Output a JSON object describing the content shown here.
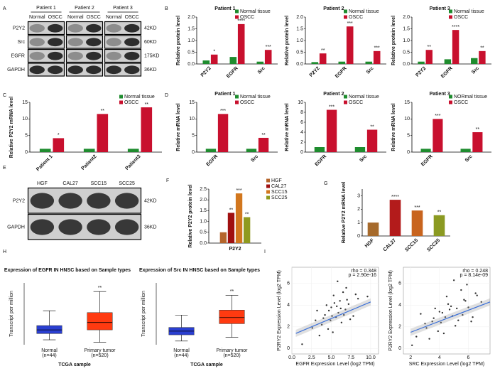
{
  "chart_data": [
    {
      "type": "blot",
      "panel": "A",
      "groups": [
        "Patient 1",
        "Patient 2",
        "Patient 3"
      ],
      "lanes": [
        "Normal",
        "OSCC"
      ],
      "rows": [
        "P2Y2",
        "Src",
        "EGFR",
        "GAPDH"
      ],
      "sizes": [
        "42KD",
        "60KD",
        "175KD",
        "36KD"
      ]
    },
    {
      "type": "bar",
      "panel": "B",
      "title": "Patient 1",
      "ylabel": "Relative protein level",
      "categories": [
        "P2Y2",
        "EGFR",
        "Src"
      ],
      "series": [
        {
          "name": "Normal tissue",
          "color": "#1e8c2e",
          "values": [
            0.15,
            0.3,
            0.1
          ]
        },
        {
          "name": "OSCC",
          "color": "#c8102e",
          "values": [
            0.4,
            1.7,
            0.6
          ],
          "significance": [
            "*",
            "****",
            "***"
          ]
        }
      ],
      "ylim": [
        0,
        2
      ],
      "yticks": [
        {
          "value": 0,
          "label": "0.0"
        },
        {
          "value": 0.5,
          "label": "0.5"
        },
        {
          "value": 1,
          "label": "1.0"
        },
        {
          "value": 1.5,
          "label": "1.5"
        },
        {
          "value": 2,
          "label": "2.0"
        }
      ]
    },
    {
      "type": "bar",
      "title": "Patient 2",
      "ylabel": "Relative protein level",
      "categories": [
        "P2Y2",
        "EGFR",
        "Src"
      ],
      "series": [
        {
          "name": "Normal tissue",
          "color": "#1e8c2e",
          "values": [
            0.08,
            0.1,
            0.1
          ]
        },
        {
          "name": "OSCC",
          "color": "#c8102e",
          "values": [
            0.45,
            1.6,
            0.55
          ],
          "significance": [
            "**",
            "***",
            "***"
          ]
        }
      ],
      "ylim": [
        0,
        2
      ],
      "yticks": [
        {
          "value": 0,
          "label": "0.0"
        },
        {
          "value": 0.5,
          "label": "0.5"
        },
        {
          "value": 1,
          "label": "1.0"
        },
        {
          "value": 1.5,
          "label": "1.5"
        },
        {
          "value": 2,
          "label": "2.0"
        }
      ]
    },
    {
      "type": "bar",
      "title": "Patient 3",
      "ylabel": "Relative protein level",
      "categories": [
        "P2Y2",
        "EGFR",
        "Src"
      ],
      "series": [
        {
          "name": "Normal tissue",
          "color": "#1e8c2e",
          "values": [
            0.1,
            0.2,
            0.25
          ]
        },
        {
          "name": "OSCC",
          "color": "#c8102e",
          "values": [
            0.6,
            1.45,
            0.55
          ],
          "significance": [
            "**",
            "****",
            "**"
          ]
        }
      ],
      "ylim": [
        0,
        2
      ],
      "yticks": [
        {
          "value": 0,
          "label": "0.0"
        },
        {
          "value": 0.5,
          "label": "0.5"
        },
        {
          "value": 1,
          "label": "1.0"
        },
        {
          "value": 1.5,
          "label": "1.5"
        },
        {
          "value": 2,
          "label": "2.0"
        }
      ]
    },
    {
      "type": "bar",
      "panel": "C",
      "ylabel": "Relative P2Y2 mRNA level",
      "categories": [
        "Patient 1",
        "Patient2",
        "Patient3"
      ],
      "series": [
        {
          "name": "Normal tissue",
          "color": "#1e8c2e",
          "values": [
            1,
            1,
            1
          ]
        },
        {
          "name": "OSCC",
          "color": "#c8102e",
          "values": [
            4.2,
            11.5,
            13.5
          ],
          "significance": [
            "*",
            "**",
            "**"
          ]
        }
      ],
      "ylim": [
        0,
        15
      ],
      "yticks": [
        0,
        5,
        10,
        15
      ]
    },
    {
      "type": "bar",
      "panel": "D",
      "title": "Patient 1",
      "ylabel": "Relative mRNA level",
      "categories": [
        "EGFR",
        "Src"
      ],
      "series": [
        {
          "name": "Normal tissue",
          "color": "#1e8c2e",
          "values": [
            1,
            1
          ]
        },
        {
          "name": "OSCC",
          "color": "#c8102e",
          "values": [
            11.5,
            4.3
          ],
          "significance": [
            "***",
            "**"
          ]
        }
      ],
      "ylim": [
        0,
        15
      ],
      "yticks": [
        0,
        5,
        10,
        15
      ]
    },
    {
      "type": "bar",
      "title": "Patient 2",
      "ylabel": "Relative mRNA level",
      "categories": [
        "EGFR",
        "Src"
      ],
      "series": [
        {
          "name": "Normal tissue",
          "color": "#1e8c2e",
          "values": [
            1,
            1
          ]
        },
        {
          "name": "OSCC",
          "color": "#c8102e",
          "values": [
            8.5,
            4.5
          ],
          "significance": [
            "***",
            "**"
          ]
        }
      ],
      "ylim": [
        0,
        10
      ],
      "yticks": [
        0,
        2,
        4,
        6,
        8,
        10
      ]
    },
    {
      "type": "bar",
      "title": "Patient 3",
      "ylabel": "Relative mRNA level",
      "categories": [
        "EGFR",
        "Src"
      ],
      "series": [
        {
          "name": "NORmal tissue",
          "color": "#1e8c2e",
          "values": [
            1,
            1
          ]
        },
        {
          "name": "OSCC",
          "color": "#c8102e",
          "values": [
            10,
            6
          ],
          "significance": [
            "***",
            "**"
          ]
        }
      ],
      "ylim": [
        0,
        15
      ],
      "yticks": [
        0,
        5,
        10,
        15
      ]
    },
    {
      "type": "blot",
      "panel": "E",
      "lanes": [
        "HGF",
        "CAL27",
        "SCC15",
        "SCC25"
      ],
      "rows": [
        "P2Y2",
        "GAPDH"
      ],
      "sizes": [
        "42KD",
        "36KD"
      ]
    },
    {
      "type": "bar",
      "panel": "F",
      "ylabel": "Relative P2Y2 protein level",
      "categories": [
        "P2Y2"
      ],
      "series": [
        {
          "name": "HGF",
          "color": "#b5652b",
          "values": [
            0.5
          ]
        },
        {
          "name": "CAL27",
          "color": "#a01010",
          "values": [
            1.4
          ],
          "significance": [
            "**"
          ]
        },
        {
          "name": "SCC15",
          "color": "#d2771e",
          "values": [
            2.3
          ],
          "significance": [
            "***"
          ]
        },
        {
          "name": "SCC25",
          "color": "#8f9a1e",
          "values": [
            1.2
          ],
          "significance": [
            "**"
          ]
        }
      ],
      "ylim": [
        0,
        2.5
      ],
      "yticks": [
        {
          "value": 0,
          "label": "0.0"
        },
        {
          "value": 0.5,
          "label": "0.5"
        },
        {
          "value": 1,
          "label": "1.0"
        },
        {
          "value": 1.5,
          "label": "1.5"
        },
        {
          "value": 2,
          "label": "2.0"
        },
        {
          "value": 2.5,
          "label": "2.5"
        }
      ]
    },
    {
      "type": "bar",
      "panel": "G",
      "ylabel": "Relative P2Y2 mRNA level",
      "categories": [
        "HGF",
        "CAL27",
        "SCC15",
        "SCC25"
      ],
      "values": [
        1,
        2.7,
        1.9,
        1.55
      ],
      "colors": [
        "#a66a2c",
        "#b31b1b",
        "#c8641e",
        "#8b9a22"
      ],
      "significance": [
        null,
        "****",
        "***",
        "**"
      ],
      "ylim": [
        0,
        3.5
      ],
      "yticks": [
        0,
        1,
        2,
        3
      ]
    },
    {
      "type": "box",
      "panel": "H",
      "title": "Expression of EGFR IN HNSC based on Sample types",
      "ylabel": "Transcript per million",
      "xlabel": "TCGA sample",
      "categories": [
        "Normal",
        "Primary tumor"
      ],
      "sublabels": [
        "(n=44)",
        "(n=520)"
      ],
      "colors": [
        "#2a3fd0",
        "#ff3a10"
      ],
      "boxes": [
        {
          "whislo": 8,
          "q1": 18,
          "med": 24,
          "q3": 31,
          "whishi": 55
        },
        {
          "whislo": 4,
          "q1": 24,
          "med": 36,
          "q3": 52,
          "whishi": 86
        }
      ],
      "significance": [
        null,
        "**"
      ],
      "ylim": [
        0,
        100
      ]
    },
    {
      "type": "box",
      "title": "Expression of Src IN HNSC based on Sample types",
      "ylabel": "Transcript per million",
      "xlabel": "TCGA sample",
      "categories": [
        "Normal",
        "Primary tumor"
      ],
      "sublabels": [
        "(n=44)",
        "(n=520)"
      ],
      "colors": [
        "#2a3fd0",
        "#ff3a10"
      ],
      "boxes": [
        {
          "whislo": 6,
          "q1": 16,
          "med": 22,
          "q3": 28,
          "whishi": 48
        },
        {
          "whislo": 12,
          "q1": 34,
          "med": 44,
          "q3": 56,
          "whishi": 80
        }
      ],
      "significance": [
        null,
        "**"
      ],
      "ylim": [
        0,
        100
      ]
    },
    {
      "type": "scatter",
      "panel": "I",
      "xlabel": "EGFR Expression Level (log2 TPM)",
      "ylabel": "P2RY2 Expression Level (log2 TPM)",
      "annotation": [
        "rho = 0.348",
        "p = 2.90e-16"
      ],
      "color": "#333333",
      "fitcolor": "#3a6fd8",
      "x": [
        4.2,
        5.0,
        5.6,
        6.1,
        3.8,
        6.8,
        5.3,
        4.6,
        7.2,
        5.9,
        3.2,
        6.5,
        4.9,
        7.8,
        5.4,
        2.6,
        6.3,
        4.4,
        8.4,
        5.1,
        3.5,
        6.9,
        5.7,
        4.0,
        7.4,
        9.6,
        1.3,
        5.8,
        6.6,
        4.7,
        3.0,
        7.0,
        5.2,
        8.1,
        6.2
      ],
      "y": [
        3.1,
        3.8,
        2.9,
        4.4,
        2.2,
        3.6,
        4.9,
        1.8,
        4.1,
        3.3,
        3.5,
        5.2,
        2.6,
        3.0,
        4.2,
        1.9,
        2.4,
        4.0,
        4.6,
        3.0,
        1.2,
        5.6,
        3.9,
        2.8,
        2.7,
        4.8,
        0.4,
        6.2,
        3.1,
        3.5,
        2.6,
        4.5,
        1.5,
        5.0,
        3.7
      ],
      "fit": {
        "x": [
          0.5,
          10
        ],
        "y": [
          1.4,
          4.3
        ]
      },
      "xlim": [
        0,
        11
      ],
      "ylim": [
        -0.5,
        7.5
      ],
      "xticks": [
        {
          "value": 0,
          "label": "0.0"
        },
        {
          "value": 2.5,
          "label": "2.5"
        },
        {
          "value": 5,
          "label": "5.0"
        },
        {
          "value": 7.5,
          "label": "7.5"
        },
        {
          "value": 10,
          "label": "10.0"
        }
      ],
      "yticks": [
        0,
        2,
        4,
        6
      ]
    },
    {
      "type": "scatter",
      "xlabel": "SRC Expression Level (log2 TPM)",
      "ylabel": "P2RY2 Expression Level (log2 TPM)",
      "annotation": [
        "rho = 0.248",
        "p = 8.14e-09"
      ],
      "color": "#333333",
      "fitcolor": "#3a6fd8",
      "x": [
        3.6,
        4.2,
        4.8,
        5.3,
        3.1,
        5.7,
        4.5,
        3.9,
        6.0,
        4.9,
        2.7,
        5.5,
        4.1,
        6.3,
        4.6,
        2.4,
        5.1,
        3.7,
        6.6,
        4.4,
        3.3,
        5.9,
        4.7,
        3.5,
        6.2,
        6.9,
        2.1,
        5.0,
        5.6,
        4.0,
        3.0,
        5.8,
        4.3,
        6.5,
        5.2
      ],
      "y": [
        2.8,
        3.3,
        3.9,
        2.6,
        1.9,
        4.5,
        4.8,
        1.6,
        3.8,
        3.0,
        3.2,
        5.4,
        2.4,
        2.9,
        4.1,
        1.1,
        2.1,
        3.7,
        4.9,
        2.9,
        0.9,
        5.9,
        3.6,
        2.5,
        2.5,
        4.3,
        0.3,
        6.3,
        3.1,
        3.4,
        2.3,
        4.4,
        1.4,
        5.1,
        3.7
      ],
      "fit": {
        "x": [
          2,
          7.5
        ],
        "y": [
          1.5,
          4.3
        ]
      },
      "xlim": [
        1.5,
        7.5
      ],
      "ylim": [
        -0.5,
        7.5
      ],
      "xticks": [
        2,
        4,
        6
      ],
      "yticks": [
        0,
        2,
        4,
        6
      ]
    }
  ]
}
